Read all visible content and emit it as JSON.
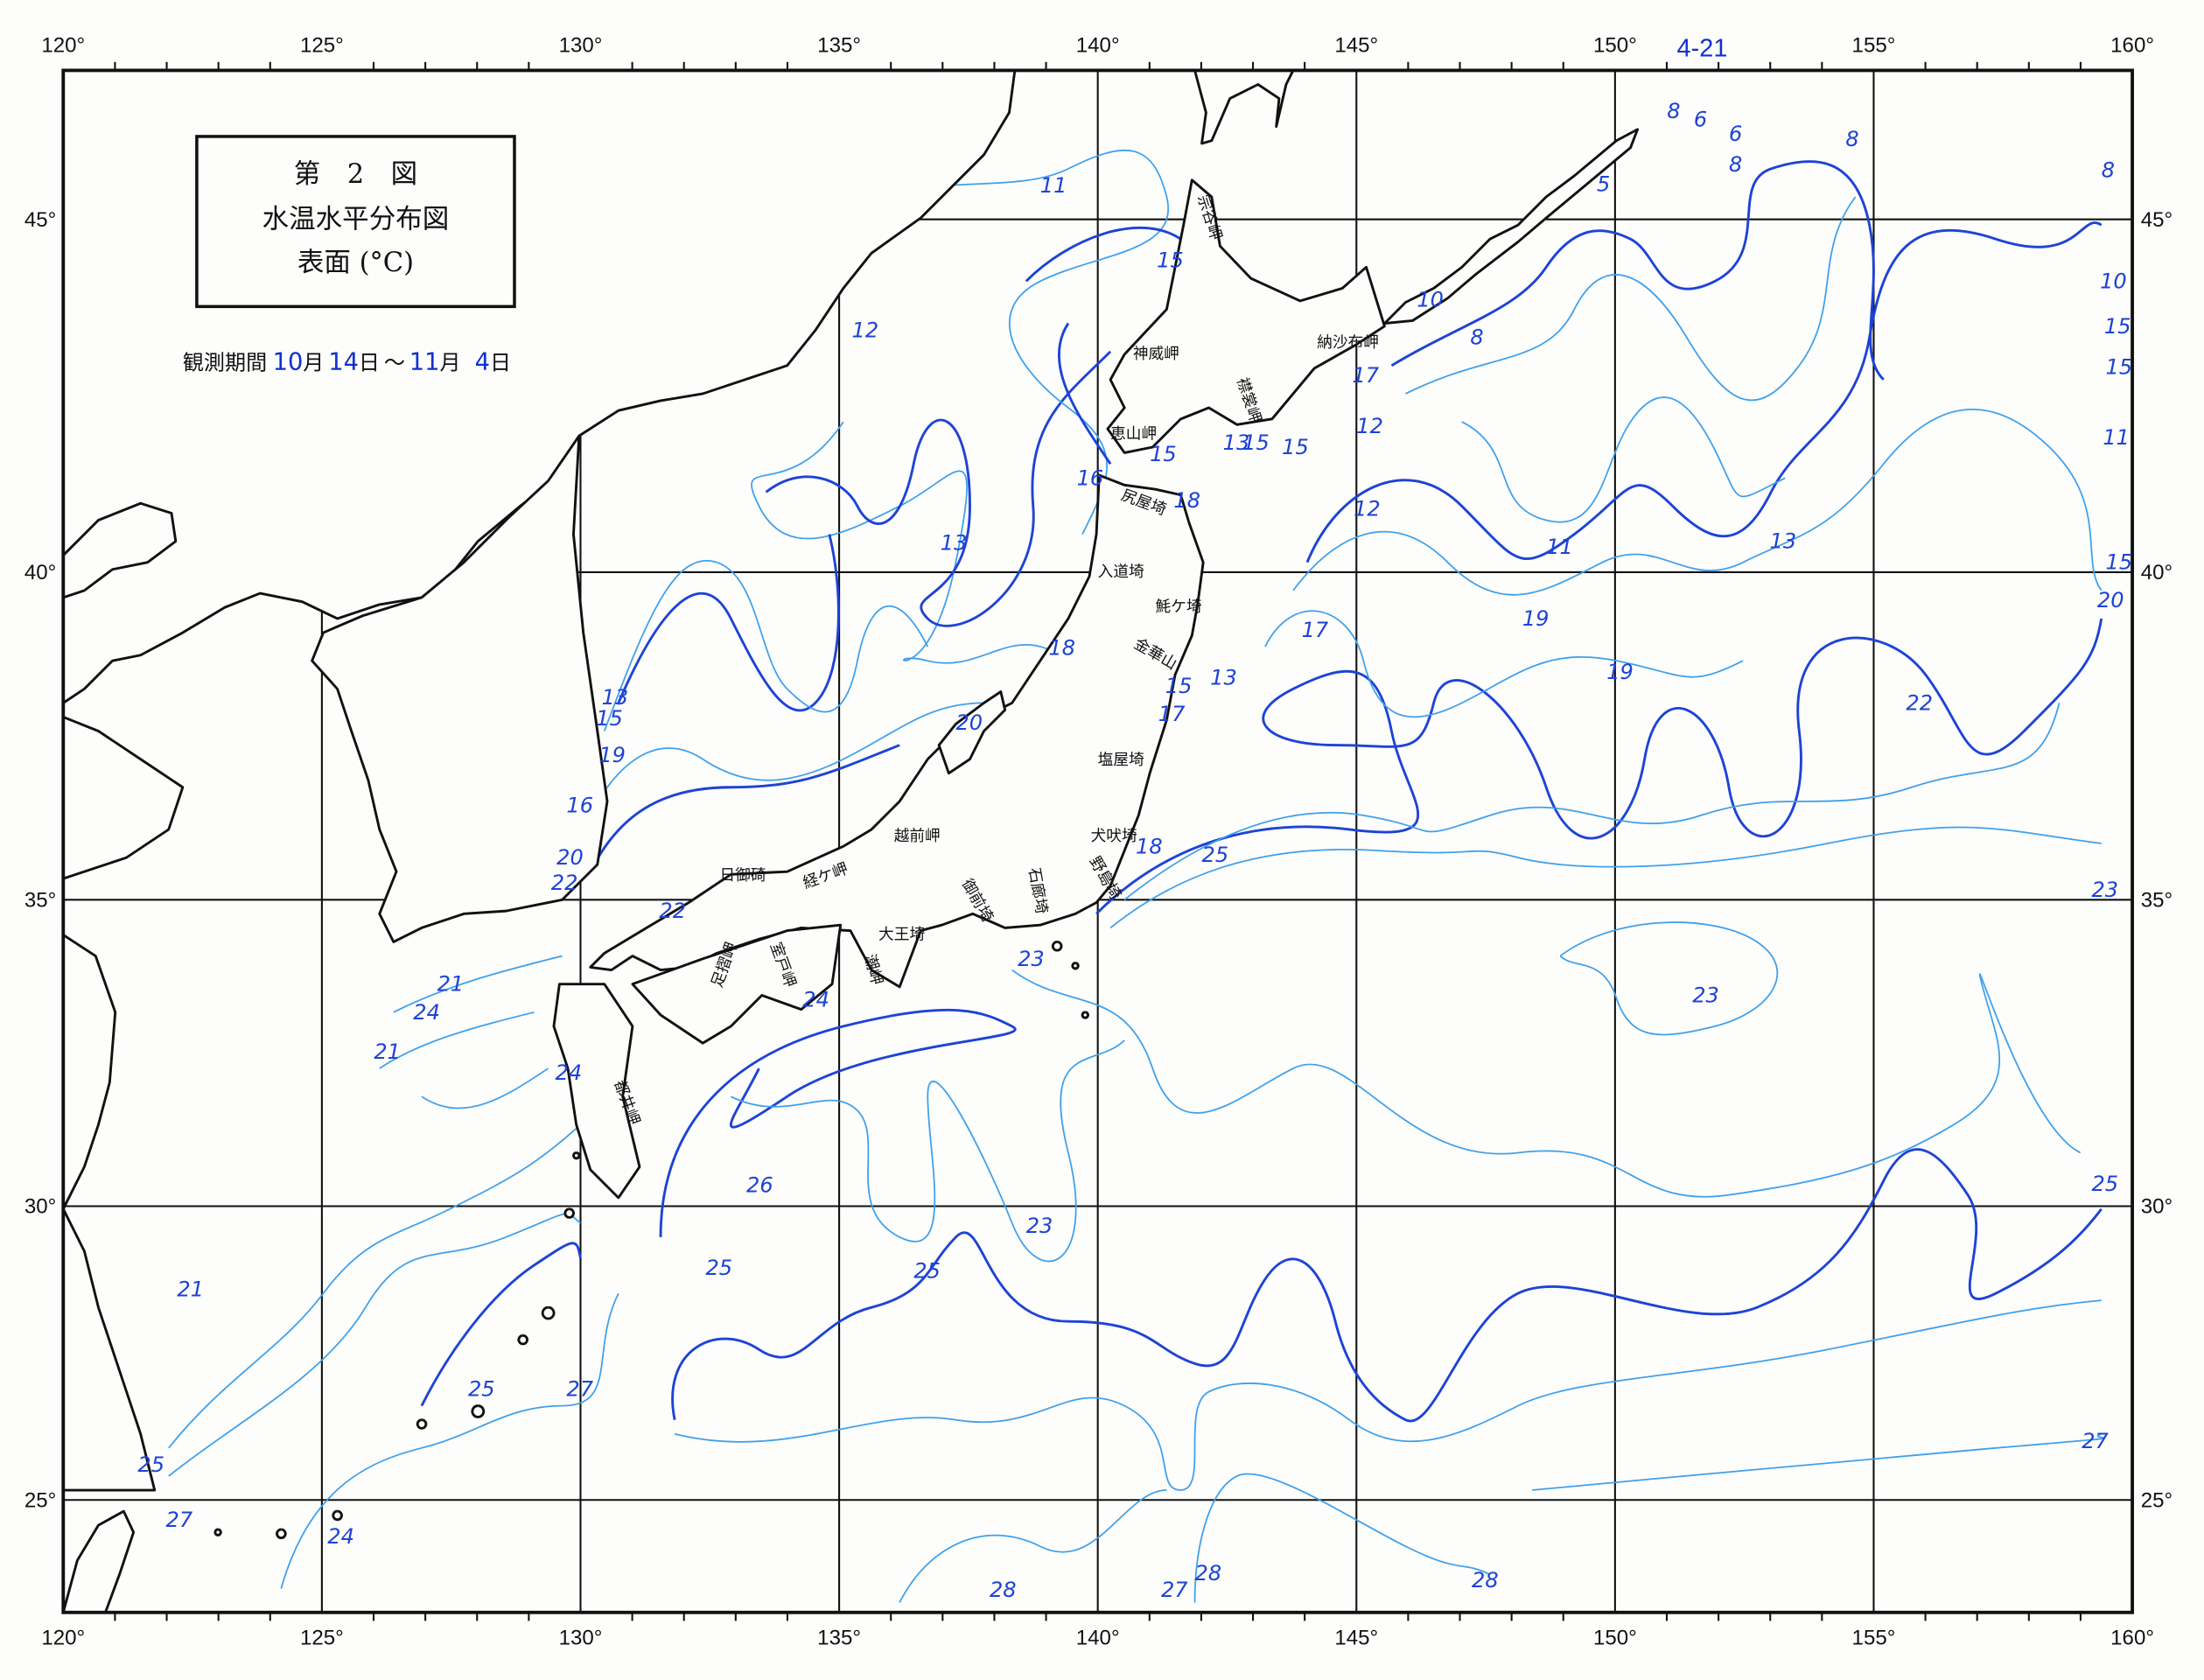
{
  "page_number": "4-21",
  "title": {
    "line1": "第　2　図",
    "line2": "水温水平分布図",
    "line3": "表面 (°C)"
  },
  "period": {
    "label": "観測期間",
    "start_month": "10",
    "month_unit": "月",
    "start_day": "14",
    "day_unit": "日",
    "sep": "～",
    "end_month": "11",
    "end_day": "4"
  },
  "longitude_labels": [
    "120°",
    "125°",
    "130°",
    "135°",
    "140°",
    "145°",
    "150°",
    "155°",
    "160°"
  ],
  "latitude_labels": [
    "45°",
    "40°",
    "35°",
    "30°",
    "25°"
  ],
  "colors": {
    "isotherm_major": "#1d43d6",
    "isotherm_minor": "#3fa0ec",
    "coastline": "#111111"
  },
  "isotherm_labels": [
    "8",
    "6",
    "6",
    "8",
    "8",
    "8",
    "5",
    "11",
    "15",
    "10",
    "8",
    "10",
    "15",
    "15",
    "12",
    "11",
    "17",
    "12",
    "15",
    "13",
    "15",
    "15",
    "16",
    "18",
    "12",
    "13",
    "11",
    "13",
    "15",
    "20",
    "19",
    "17",
    "18",
    "19",
    "13",
    "15",
    "17",
    "13",
    "15",
    "19",
    "20",
    "22",
    "16",
    "20",
    "22",
    "18",
    "25",
    "22",
    "23",
    "23",
    "23",
    "21",
    "24",
    "24",
    "21",
    "24",
    "26",
    "25",
    "23",
    "25",
    "25",
    "21",
    "25",
    "27",
    "27",
    "25",
    "27",
    "24",
    "28",
    "27",
    "28",
    "28"
  ],
  "place_names": [
    "宗谷岬",
    "神威岬",
    "襟裳岬",
    "納沙布岬",
    "恵山岬",
    "尻屋埼",
    "入道埼",
    "魹ケ埼",
    "金華山",
    "塩屋埼",
    "犬吠埼",
    "野島埼",
    "石廊埼",
    "御前埼",
    "大王埼",
    "潮岬",
    "室戸岬",
    "足摺岬",
    "都井岬",
    "日御碕",
    "経ケ岬",
    "越前岬"
  ]
}
